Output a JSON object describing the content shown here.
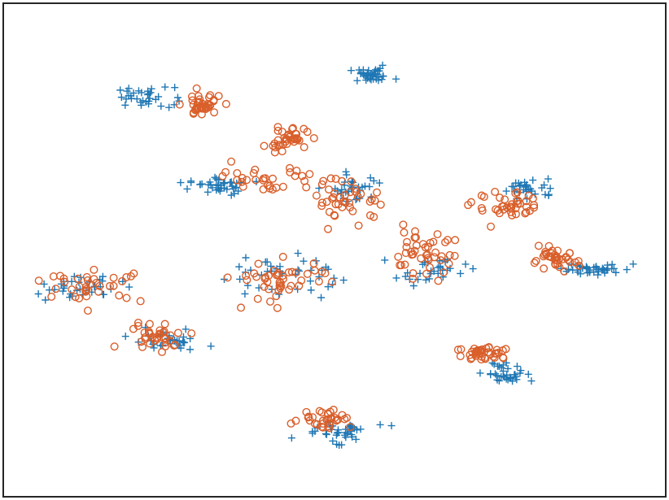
{
  "chart_data": {
    "type": "scatter",
    "title": "",
    "xlabel": "",
    "ylabel": "",
    "xlim": [
      0,
      100
    ],
    "ylim": [
      0,
      100
    ],
    "axes_visible": false,
    "grid": false,
    "legend": "none",
    "series": [
      {
        "marker": "plus",
        "color": "#1f77b4",
        "clusters": [
          {
            "cx": 55.6,
            "cy": 85.6,
            "sx": 1.7,
            "sy": 0.7,
            "n": 40
          },
          {
            "cx": 21.3,
            "cy": 81.2,
            "sx": 2.2,
            "sy": 1.0,
            "n": 34
          },
          {
            "cx": 32.3,
            "cy": 62.9,
            "sx": 2.2,
            "sy": 0.9,
            "n": 40
          },
          {
            "cx": 53.5,
            "cy": 62.8,
            "sx": 1.8,
            "sy": 1.6,
            "n": 30
          },
          {
            "cx": 79.6,
            "cy": 62.5,
            "sx": 2.0,
            "sy": 1.0,
            "n": 30
          },
          {
            "cx": 89.8,
            "cy": 46.3,
            "sx": 2.7,
            "sy": 0.7,
            "n": 40
          },
          {
            "cx": 41.5,
            "cy": 44.9,
            "sx": 4.2,
            "sy": 2.4,
            "n": 40
          },
          {
            "cx": 64.7,
            "cy": 45.8,
            "sx": 2.6,
            "sy": 1.3,
            "n": 30
          },
          {
            "cx": 11.0,
            "cy": 42.2,
            "sx": 3.5,
            "sy": 1.2,
            "n": 34
          },
          {
            "cx": 24.5,
            "cy": 31.5,
            "sx": 2.6,
            "sy": 1.0,
            "n": 34
          },
          {
            "cx": 75.8,
            "cy": 24.8,
            "sx": 1.5,
            "sy": 1.3,
            "n": 34
          },
          {
            "cx": 50.5,
            "cy": 13.1,
            "sx": 2.8,
            "sy": 1.1,
            "n": 40
          }
        ]
      },
      {
        "marker": "circle",
        "color": "#d95f2b",
        "clusters": [
          {
            "cx": 29.7,
            "cy": 79.4,
            "sx": 1.5,
            "sy": 1.2,
            "n": 40
          },
          {
            "cx": 42.9,
            "cy": 72.6,
            "sx": 1.6,
            "sy": 1.1,
            "n": 40
          },
          {
            "cx": 40.3,
            "cy": 64.5,
            "sx": 3.5,
            "sy": 1.6,
            "n": 32
          },
          {
            "cx": 52.2,
            "cy": 60.3,
            "sx": 2.7,
            "sy": 2.0,
            "n": 40
          },
          {
            "cx": 76.3,
            "cy": 58.6,
            "sx": 2.6,
            "sy": 1.5,
            "n": 40
          },
          {
            "cx": 83.5,
            "cy": 48.0,
            "sx": 1.7,
            "sy": 1.0,
            "n": 40
          },
          {
            "cx": 63.0,
            "cy": 49.4,
            "sx": 2.6,
            "sy": 2.2,
            "n": 44
          },
          {
            "cx": 41.8,
            "cy": 43.8,
            "sx": 3.7,
            "sy": 2.3,
            "n": 44
          },
          {
            "cx": 13.8,
            "cy": 42.6,
            "sx": 3.6,
            "sy": 1.5,
            "n": 36
          },
          {
            "cx": 22.8,
            "cy": 32.6,
            "sx": 2.6,
            "sy": 1.3,
            "n": 36
          },
          {
            "cx": 73.1,
            "cy": 28.8,
            "sx": 2.3,
            "sy": 1.0,
            "n": 40
          },
          {
            "cx": 48.5,
            "cy": 15.7,
            "sx": 2.0,
            "sy": 1.0,
            "n": 34
          }
        ]
      }
    ]
  }
}
